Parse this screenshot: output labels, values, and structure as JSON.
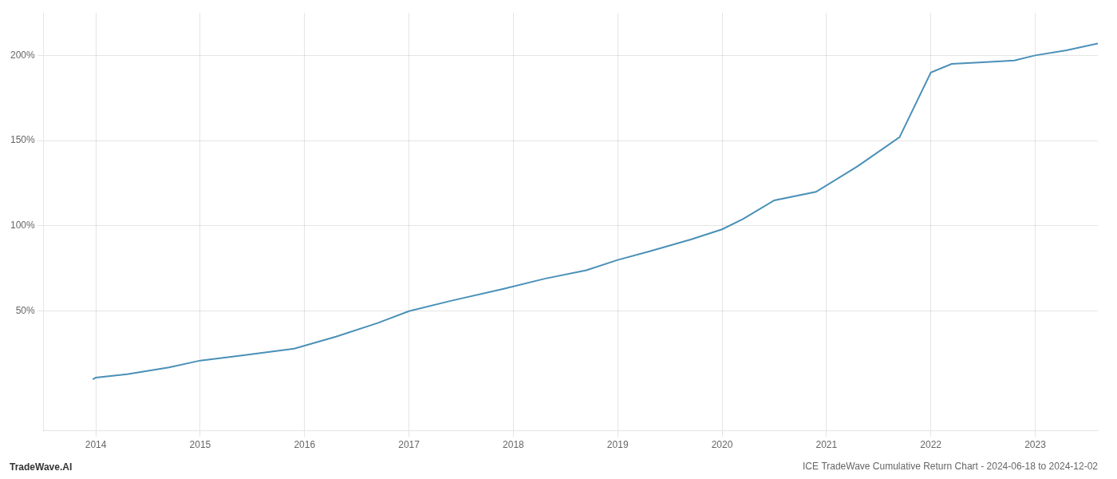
{
  "chart_data": {
    "type": "line",
    "title": "ICE TradeWave Cumulative Return Chart - 2024-06-18 to 2024-12-02",
    "annotations": [
      "TradeWave.AI"
    ],
    "x": [
      2013.97,
      2014.0,
      2014.3,
      2014.7,
      2015.0,
      2015.4,
      2015.9,
      2016.3,
      2016.7,
      2017.0,
      2017.4,
      2017.9,
      2018.3,
      2018.7,
      2019.0,
      2019.3,
      2019.7,
      2020.0,
      2020.2,
      2020.5,
      2020.9,
      2021.3,
      2021.7,
      2022.0,
      2022.2,
      2022.5,
      2022.8,
      2023.0,
      2023.3,
      2023.6
    ],
    "values": [
      10,
      11,
      13,
      17,
      21,
      24,
      28,
      35,
      43,
      50,
      56,
      63,
      69,
      74,
      80,
      85,
      92,
      98,
      104,
      115,
      120,
      135,
      152,
      190,
      195,
      196,
      197,
      200,
      203,
      207
    ],
    "color": "#4a90b8",
    "xlim": [
      2013.5,
      2023.6
    ],
    "xticks": [
      2014,
      2015,
      2016,
      2017,
      2018,
      2019,
      2020,
      2021,
      2022,
      2023
    ],
    "ylim": [
      -20,
      225
    ],
    "yticks": [
      {
        "value": 50,
        "label": "50%"
      },
      {
        "value": 100,
        "label": "100%"
      },
      {
        "value": 150,
        "label": "150%"
      },
      {
        "value": 200,
        "label": "200%"
      }
    ],
    "grid": true
  }
}
